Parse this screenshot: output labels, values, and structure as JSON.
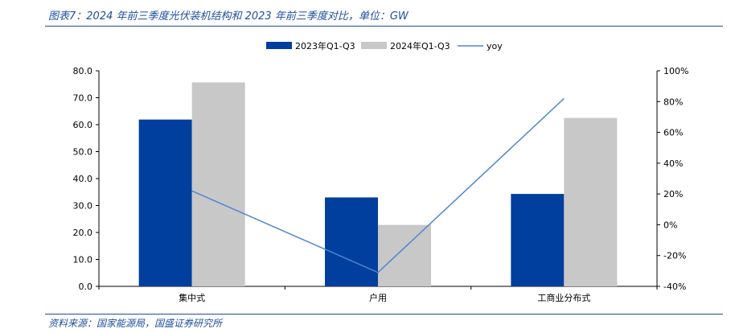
{
  "figure": {
    "title": "图表7：2024 年前三季度光伏装机结构和 2023 年前三季度对比，单位：GW",
    "source": "资料来源：国家能源局，国盛证券研究所"
  },
  "colors": {
    "series_2023": "#003f9e",
    "series_2024": "#c8c8c8",
    "yoy_line": "#4f86d0",
    "brand": "#1f4e9e"
  },
  "chart_data": {
    "type": "bar",
    "categories": [
      "集中式",
      "户用",
      "工商业分布式"
    ],
    "series": [
      {
        "name": "2023年Q1-Q3",
        "type": "bar",
        "axis": "left",
        "values": [
          61.9,
          33.0,
          34.3
        ]
      },
      {
        "name": "2024年Q1-Q3",
        "type": "bar",
        "axis": "left",
        "values": [
          75.7,
          22.8,
          62.5
        ]
      },
      {
        "name": "yoy",
        "type": "line",
        "axis": "right",
        "values": [
          0.22,
          -0.31,
          0.82
        ]
      }
    ],
    "ylim": [
      0,
      80
    ],
    "yticks": [
      "0.0",
      "10.0",
      "20.0",
      "30.0",
      "40.0",
      "50.0",
      "60.0",
      "70.0",
      "80.0"
    ],
    "y2lim": [
      -0.4,
      1.0
    ],
    "y2ticks": [
      "-40%",
      "-20%",
      "0%",
      "20%",
      "40%",
      "60%",
      "80%",
      "100%"
    ],
    "legend_position": "top-center",
    "grid": false
  }
}
